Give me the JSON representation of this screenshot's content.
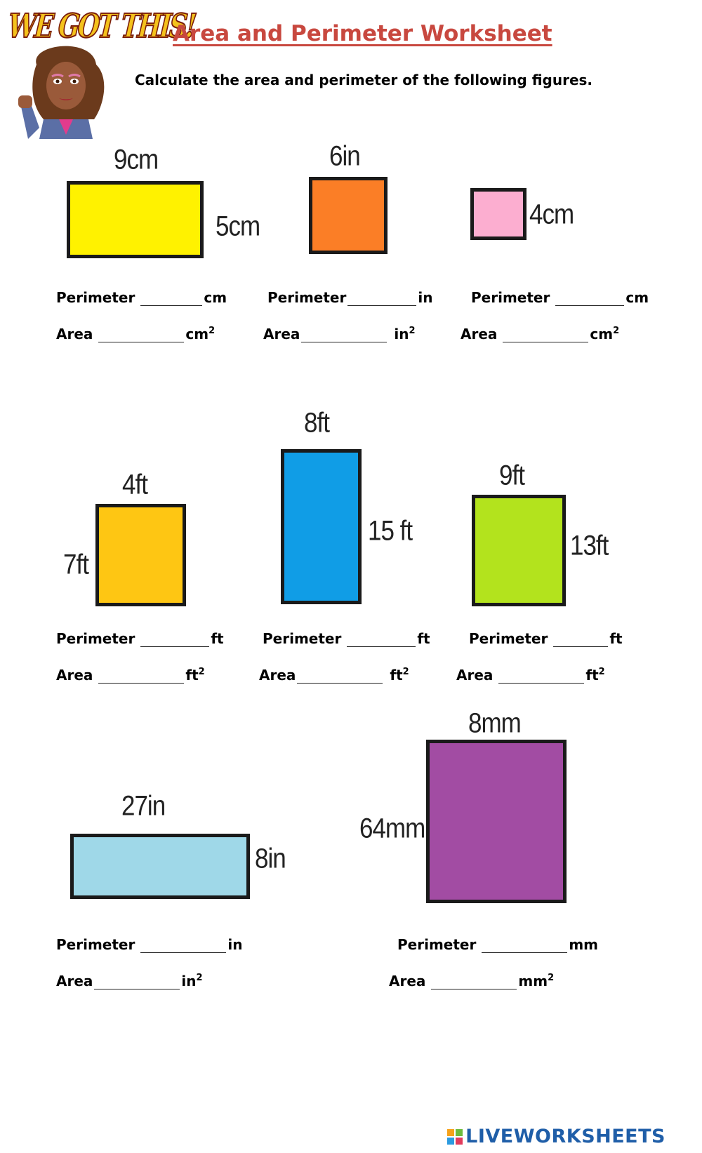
{
  "header": {
    "logo_text": "WE GOT THIS!",
    "title": "Area and Perimeter Worksheet",
    "instructions": "Calculate the area and perimeter of the following figures."
  },
  "labels": {
    "perimeter": "Perimeter",
    "area": "Area"
  },
  "figures": [
    {
      "id": "fig1",
      "color": "#fff200",
      "top": "9cm",
      "side": "5cm",
      "unit": "cm",
      "area_unit": "cm",
      "area_sup": "2"
    },
    {
      "id": "fig2",
      "color": "#fb7e26",
      "top": "6in",
      "unit": "in",
      "area_unit": "in",
      "area_sup": "2"
    },
    {
      "id": "fig3",
      "color": "#fcaed0",
      "side": "4cm",
      "unit": "cm",
      "area_unit": "cm",
      "area_sup": "2"
    },
    {
      "id": "fig4",
      "color": "#fec613",
      "top": "4ft",
      "side": "7ft",
      "unit": "ft",
      "area_unit": "ft",
      "area_sup": "2"
    },
    {
      "id": "fig5",
      "color": "#109de6",
      "top": "8ft",
      "side": "15 ft",
      "unit": "ft",
      "area_unit": "ft",
      "area_sup": "2"
    },
    {
      "id": "fig6",
      "color": "#b3e31d",
      "top": "9ft",
      "side": "13ft",
      "unit": "ft",
      "area_unit": "ft",
      "area_sup": "2"
    },
    {
      "id": "fig7",
      "color": "#9fd8e8",
      "top": "27in",
      "side": "8in",
      "unit": "in",
      "area_unit": "in",
      "area_sup": "2"
    },
    {
      "id": "fig8",
      "color": "#a24ca3",
      "top": "8mm",
      "side": "64mm",
      "unit": "mm",
      "area_unit": "mm",
      "area_sup": "2"
    }
  ],
  "footer": {
    "brand": "LIVEWORKSHEETS"
  }
}
